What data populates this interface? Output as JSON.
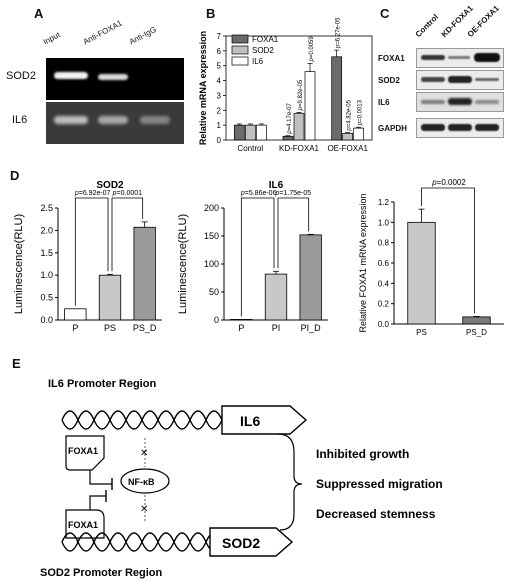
{
  "panels": {
    "a": "A",
    "b": "B",
    "c": "C",
    "d": "D",
    "e": "E"
  },
  "panelA": {
    "lanes": [
      "Input",
      "Anti-FOXA1",
      "Anti-IgG"
    ],
    "rows": [
      "SOD2",
      "IL6"
    ]
  },
  "panelC": {
    "lanes": [
      "Control",
      "KD-FOXA1",
      "OE-FOXA1"
    ],
    "rows": [
      "FOXA1",
      "SOD2",
      "IL6",
      "GAPDH"
    ]
  },
  "chart_data": [
    {
      "id": "B",
      "type": "bar",
      "title": "",
      "xlabel": "",
      "ylabel": "Relative mRNA expression",
      "ylim": [
        0,
        7
      ],
      "yticks": [
        0,
        1,
        2,
        3,
        4,
        5,
        6,
        7
      ],
      "categories": [
        "Control",
        "KD-FOXA1",
        "OE-FOXA1"
      ],
      "legend_position": "top-left",
      "series": [
        {
          "name": "FOXA1",
          "color": "#6b6b6b",
          "values": [
            1.0,
            0.25,
            5.6
          ],
          "errors": [
            0.08,
            0.04,
            0.45
          ]
        },
        {
          "name": "SOD2",
          "color": "#c0c0c0",
          "values": [
            1.0,
            1.8,
            0.45
          ],
          "errors": [
            0.08,
            0.06,
            0.05
          ]
        },
        {
          "name": "IL6",
          "color": "#ffffff",
          "values": [
            1.0,
            4.6,
            0.8
          ],
          "errors": [
            0.08,
            0.55,
            0.06
          ]
        }
      ],
      "annotations": [
        {
          "series": 0,
          "category": 1,
          "text": "p=4.17e-07"
        },
        {
          "series": 1,
          "category": 1,
          "text": "p=9.82e-05"
        },
        {
          "series": 2,
          "category": 1,
          "text": "p=0.0059"
        },
        {
          "series": 0,
          "category": 2,
          "text": "p=6.27e-05"
        },
        {
          "series": 1,
          "category": 2,
          "text": "p=4.82e-05"
        },
        {
          "series": 2,
          "category": 2,
          "text": "p=0.0013"
        }
      ]
    },
    {
      "id": "D1",
      "type": "bar",
      "title": "SOD2",
      "xlabel": "",
      "ylabel": "Luminescence(RLU)",
      "ylim": [
        0,
        2.5
      ],
      "yticks": [
        0.0,
        0.5,
        1.0,
        1.5,
        2.0,
        2.5
      ],
      "categories": [
        "P",
        "PS",
        "PS_D"
      ],
      "colors": [
        "#ffffff",
        "#c8c8c8",
        "#9a9a9a"
      ],
      "values": [
        0.25,
        1.0,
        2.07
      ],
      "errors": [
        0,
        0.02,
        0.12
      ],
      "comparisons": [
        {
          "from": 0,
          "to": 1,
          "text": "p=6.92e-07"
        },
        {
          "from": 1,
          "to": 2,
          "text": "p=0.0001"
        }
      ]
    },
    {
      "id": "D2",
      "type": "bar",
      "title": "IL6",
      "xlabel": "",
      "ylabel": "Luminescence(RLU)",
      "ylim": [
        0,
        200
      ],
      "yticks": [
        0,
        50,
        100,
        150,
        200
      ],
      "categories": [
        "P",
        "PI",
        "PI_D"
      ],
      "colors": [
        "#ffffff",
        "#c8c8c8",
        "#9a9a9a"
      ],
      "values": [
        1,
        82,
        152
      ],
      "errors": [
        0,
        5,
        1
      ],
      "comparisons": [
        {
          "from": 0,
          "to": 1,
          "text": "p=5.86e-06"
        },
        {
          "from": 1,
          "to": 2,
          "text": "p=1.75e-05"
        }
      ]
    },
    {
      "id": "D3",
      "type": "bar",
      "title": "",
      "xlabel": "",
      "ylabel": "Relative FOXA1 mRNA expression",
      "ylim": [
        0,
        1.2
      ],
      "yticks": [
        0.0,
        0.2,
        0.4,
        0.6,
        0.8,
        1.0,
        1.2
      ],
      "categories": [
        "PS",
        "PS_D"
      ],
      "colors": [
        "#c8c8c8",
        "#7a7a7a"
      ],
      "values": [
        1.0,
        0.07
      ],
      "errors": [
        0.13,
        0.005
      ],
      "comparisons": [
        {
          "from": 0,
          "to": 1,
          "text": "p=0.0002"
        }
      ]
    }
  ],
  "panelE": {
    "il6_region": "IL6  Promoter Region",
    "sod2_region": "SOD2  Promoter Region",
    "gene_il6": "IL6",
    "gene_sod2": "SOD2",
    "foxa1": "FOXA1",
    "nfkb": "NF-κB",
    "outcomes": [
      "Inhibited growth",
      "Suppressed migration",
      "Decreased stemness"
    ]
  }
}
